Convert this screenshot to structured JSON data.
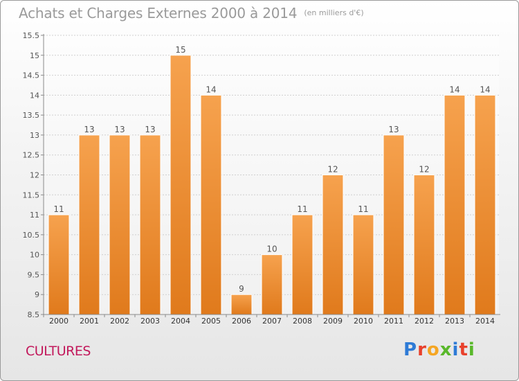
{
  "page": {
    "title": "Achats et Charges Externes 2000 à 2014",
    "unit": "(en milliers d'€)",
    "commune": "CULTURES",
    "brand": {
      "letters": [
        "P",
        "r",
        "o",
        "x",
        "i",
        "t",
        "i"
      ],
      "colors": [
        "#2e7bd6",
        "#e8412c",
        "#f5a623",
        "#59b82a",
        "#2e7bd6",
        "#e8412c",
        "#59b82a"
      ]
    }
  },
  "chart_data": {
    "type": "bar",
    "title": "Achats et Charges Externes 2000 à 2014",
    "subtitle": "(en milliers d'€)",
    "categories": [
      "2000",
      "2001",
      "2002",
      "2003",
      "2004",
      "2005",
      "2006",
      "2007",
      "2008",
      "2009",
      "2010",
      "2011",
      "2012",
      "2013",
      "2014"
    ],
    "values": [
      11,
      13,
      13,
      13,
      15,
      14,
      9,
      10,
      11,
      12,
      11,
      13,
      12,
      14,
      14
    ],
    "data_labels": [
      "11",
      "13",
      "13",
      "13",
      "15",
      "14",
      "9",
      "10",
      "11",
      "12",
      "11",
      "13",
      "12",
      "14",
      "14"
    ],
    "ylim": [
      8.5,
      15.5
    ],
    "yticks": [
      8.5,
      9,
      9.5,
      10,
      10.5,
      11,
      11.5,
      12,
      12.5,
      13,
      13.5,
      14,
      14.5,
      15,
      15.5
    ],
    "ytick_labels": [
      "8.5",
      "9",
      "9.5",
      "10",
      "10.5",
      "11",
      "11.5",
      "12",
      "12.5",
      "13",
      "13.5",
      "14",
      "14.5",
      "15",
      "15.5"
    ],
    "grid": true,
    "bar_color_top": "#f6a24e",
    "bar_color_bottom": "#e07a1c",
    "xlabel": "",
    "ylabel": ""
  }
}
